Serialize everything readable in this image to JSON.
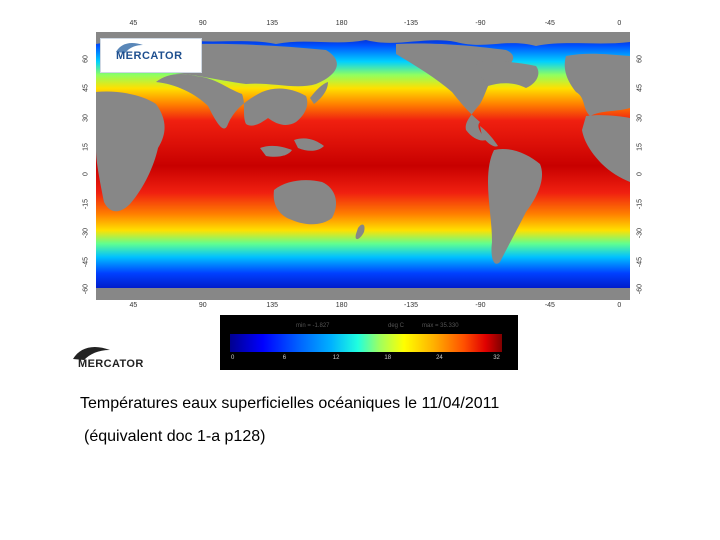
{
  "figure": {
    "logo_top": "MERCATOR",
    "logo_bottom": "MERCATOR",
    "top_lon_ticks": [
      "45",
      "90",
      "135",
      "180",
      "-135",
      "-90",
      "-45",
      "0"
    ],
    "bottom_lon_ticks": [
      "45",
      "90",
      "135",
      "180",
      "-135",
      "-90",
      "-45",
      "0"
    ],
    "left_lat_ticks": [
      "60",
      "45",
      "30",
      "15",
      "0",
      "-15",
      "-30",
      "-45",
      "-60"
    ],
    "right_lat_ticks": [
      "60",
      "45",
      "30",
      "15",
      "0",
      "-15",
      "-30",
      "-45",
      "-60"
    ],
    "colorbar": {
      "min_label": "min = -1.827",
      "unit": "deg C",
      "max_label": "max = 35.330",
      "ticks": [
        "0",
        "6",
        "12",
        "18",
        "24",
        "32"
      ],
      "colors": [
        "#00008f",
        "#0000ff",
        "#00b0ff",
        "#20ffdf",
        "#ffff00",
        "#ff5000",
        "#800000"
      ]
    },
    "colors": {
      "land": "#878787",
      "warm": "#e81808",
      "cold": "#0000c8"
    }
  },
  "caption": {
    "title": "Températures eaux superficielles océaniques le 11/04/2011",
    "subtitle": "(équivalent doc 1-a p128)"
  }
}
